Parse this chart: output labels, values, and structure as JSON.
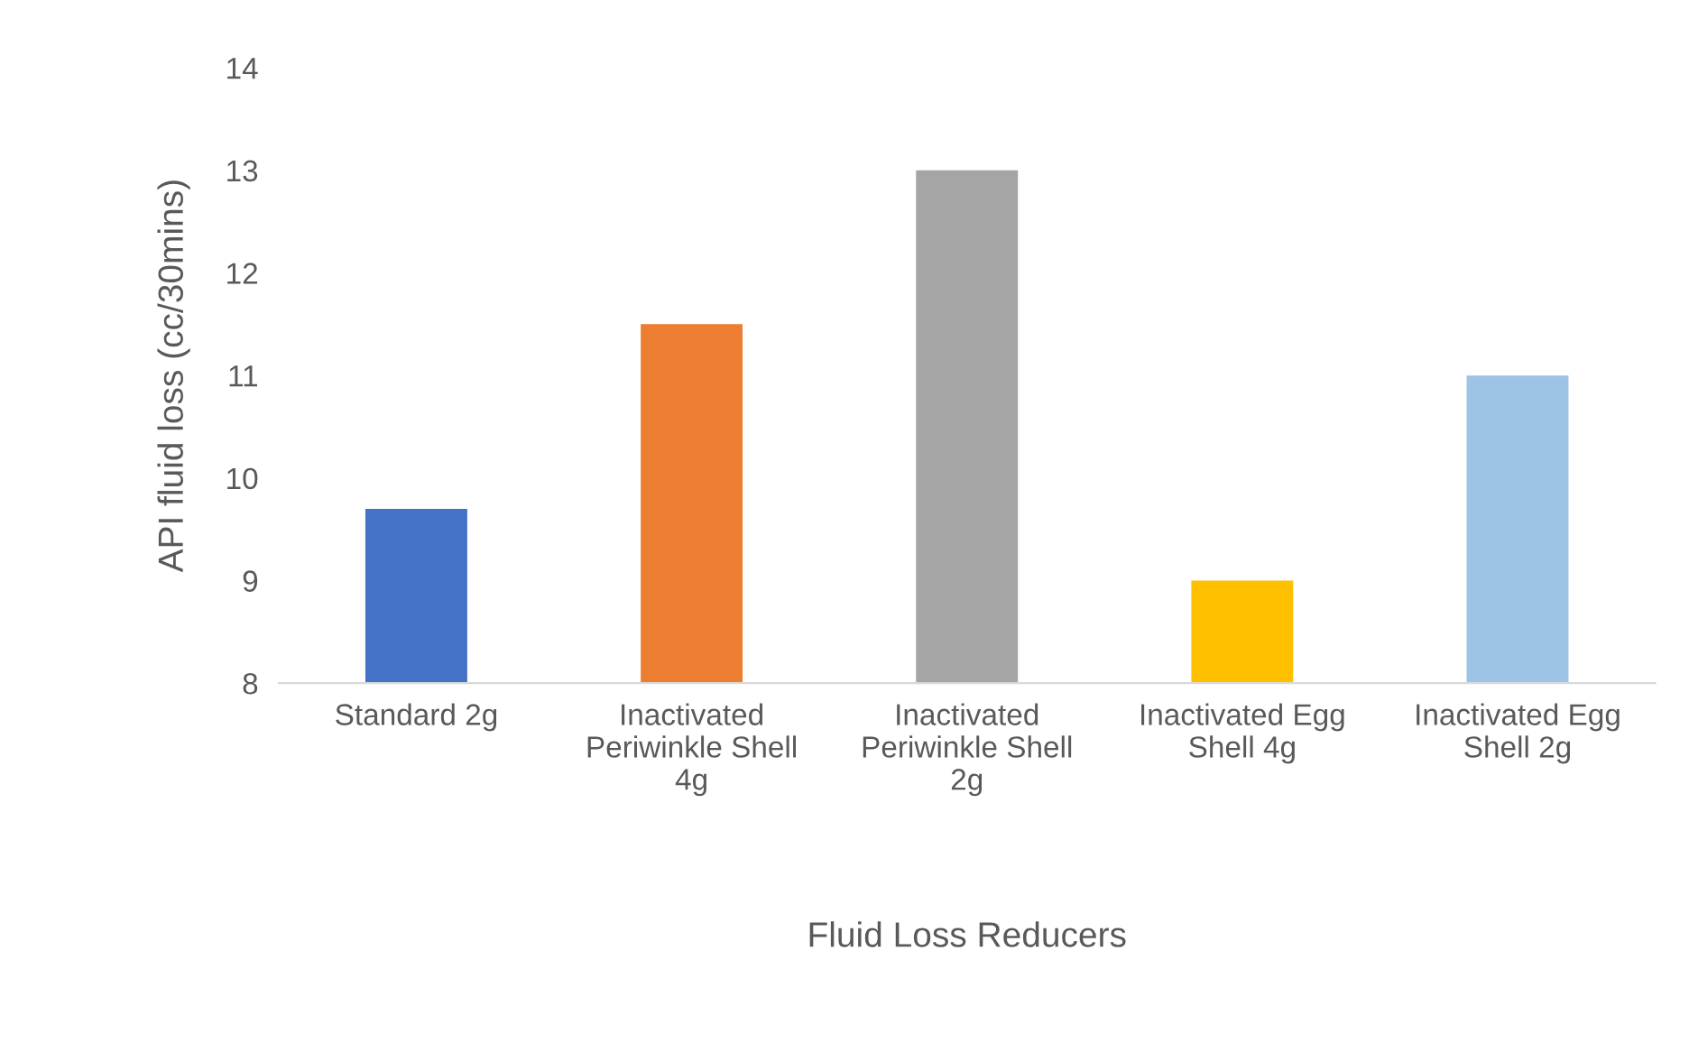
{
  "chart_data": {
    "type": "bar",
    "xlabel": "Fluid Loss Reducers",
    "ylabel": "API fluid loss (cc/30mins)",
    "categories": [
      "Standard 2g",
      "Inactivated Periwinkle Shell 4g",
      "Inactivated Periwinkle Shell 2g",
      "Inactivated Egg Shell 4g",
      "Inactivated Egg Shell 2g"
    ],
    "values": [
      9.7,
      11.5,
      13.0,
      9.0,
      11.0
    ],
    "colors": [
      "#4472c4",
      "#ed7d31",
      "#a5a5a5",
      "#ffc000",
      "#9dc3e6"
    ],
    "ylim": [
      8,
      14
    ],
    "yticks": [
      8,
      9,
      10,
      11,
      12,
      13,
      14
    ],
    "grid": false
  }
}
